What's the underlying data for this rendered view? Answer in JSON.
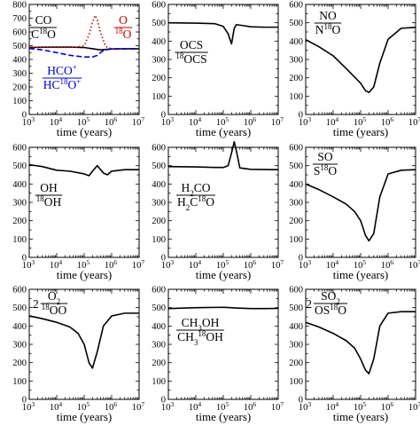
{
  "figure": {
    "xlabel": "time (years)",
    "x_tick_labels": [
      "10",
      "10",
      "10",
      "10",
      "10"
    ],
    "x_tick_exponents": [
      "3",
      "4",
      "5",
      "6",
      "7"
    ],
    "x_tick_values": [
      3,
      4,
      5,
      6,
      7
    ]
  },
  "chart_data": [
    {
      "type": "line",
      "xscale": "log",
      "xlabel": "time (years)",
      "ylabel": "",
      "xlim": [
        1000,
        10000000
      ],
      "ylim": [
        0,
        800
      ],
      "yticks": [
        0,
        100,
        200,
        300,
        400,
        500,
        600,
        700,
        800
      ],
      "series": [
        {
          "name": "CO / C18O",
          "color": "#000000",
          "style": "solid",
          "x": [
            1000,
            3000,
            10000,
            30000,
            100000,
            200000,
            400000,
            1000000,
            3000000,
            10000000
          ],
          "y": [
            487,
            489,
            490,
            490,
            487,
            478,
            470,
            476,
            478,
            478
          ]
        },
        {
          "name": "O / 18O",
          "color": "#cc0000",
          "style": "dotted",
          "x": [
            1000,
            10000,
            50000,
            100000,
            150000,
            200000,
            250000,
            300000,
            400000,
            600000,
            1000000,
            10000000
          ],
          "y": [
            488,
            488,
            489,
            500,
            580,
            670,
            720,
            690,
            590,
            495,
            476,
            478
          ]
        },
        {
          "name": "HCO+ / HC18O+",
          "color": "#0000cc",
          "style": "dashed",
          "x": [
            1000,
            3000,
            10000,
            30000,
            100000,
            200000,
            300000,
            500000,
            1000000,
            3000000,
            10000000
          ],
          "y": [
            480,
            470,
            450,
            430,
            418,
            418,
            430,
            465,
            478,
            478,
            478
          ]
        }
      ]
    },
    {
      "type": "line",
      "xscale": "log",
      "xlabel": "time (years)",
      "ylabel": "",
      "xlim": [
        1000,
        10000000
      ],
      "ylim": [
        0,
        600
      ],
      "yticks": [
        0,
        100,
        200,
        300,
        400,
        500,
        600
      ],
      "series": [
        {
          "name": "OCS / 18OCS",
          "color": "#000000",
          "style": "solid",
          "x": [
            1000,
            10000,
            50000,
            100000,
            150000,
            200000,
            250000,
            300000,
            500000,
            1000000,
            3000000,
            10000000
          ],
          "y": [
            500,
            498,
            495,
            480,
            440,
            385,
            470,
            490,
            485,
            478,
            476,
            476
          ]
        }
      ]
    },
    {
      "type": "line",
      "xscale": "log",
      "xlabel": "time (years)",
      "ylabel": "",
      "xlim": [
        1000,
        10000000
      ],
      "ylim": [
        0,
        600
      ],
      "yticks": [
        0,
        100,
        200,
        300,
        400,
        500,
        600
      ],
      "series": [
        {
          "name": "NO / N18O",
          "color": "#000000",
          "style": "solid",
          "x": [
            1000,
            3000,
            10000,
            30000,
            100000,
            150000,
            200000,
            300000,
            500000,
            1000000,
            3000000,
            10000000
          ],
          "y": [
            408,
            370,
            320,
            250,
            170,
            130,
            120,
            150,
            280,
            410,
            470,
            475
          ]
        }
      ]
    },
    {
      "type": "line",
      "xscale": "log",
      "xlabel": "time (years)",
      "ylabel": "",
      "xlim": [
        1000,
        10000000
      ],
      "ylim": [
        0,
        600
      ],
      "yticks": [
        0,
        100,
        200,
        300,
        400,
        500,
        600
      ],
      "series": [
        {
          "name": "OH / 18OH",
          "color": "#000000",
          "style": "solid",
          "x": [
            1000,
            3000,
            10000,
            30000,
            100000,
            150000,
            200000,
            300000,
            500000,
            700000,
            1000000,
            3000000,
            10000000
          ],
          "y": [
            505,
            495,
            475,
            470,
            455,
            445,
            470,
            500,
            460,
            450,
            470,
            478,
            478
          ]
        }
      ]
    },
    {
      "type": "line",
      "xscale": "log",
      "xlabel": "time (years)",
      "ylabel": "",
      "xlim": [
        1000,
        10000000
      ],
      "ylim": [
        0,
        600
      ],
      "yticks": [
        0,
        100,
        200,
        300,
        400,
        500,
        600
      ],
      "series": [
        {
          "name": "H2CO / H2C18O",
          "color": "#000000",
          "style": "solid",
          "x": [
            1000,
            10000,
            50000,
            100000,
            150000,
            200000,
            250000,
            300000,
            400000,
            1000000,
            10000000
          ],
          "y": [
            495,
            493,
            490,
            490,
            500,
            570,
            630,
            580,
            488,
            480,
            478
          ]
        }
      ]
    },
    {
      "type": "line",
      "xscale": "log",
      "xlabel": "time (years)",
      "ylabel": "",
      "xlim": [
        1000,
        10000000
      ],
      "ylim": [
        0,
        600
      ],
      "yticks": [
        0,
        100,
        200,
        300,
        400,
        500,
        600
      ],
      "series": [
        {
          "name": "SO / S18O",
          "color": "#000000",
          "style": "solid",
          "x": [
            1000,
            3000,
            10000,
            30000,
            60000,
            100000,
            150000,
            200000,
            300000,
            500000,
            1000000,
            3000000,
            10000000
          ],
          "y": [
            400,
            370,
            330,
            290,
            250,
            200,
            120,
            90,
            130,
            330,
            455,
            475,
            478
          ]
        }
      ]
    },
    {
      "type": "line",
      "xscale": "log",
      "xlabel": "time (years)",
      "ylabel": "",
      "xlim": [
        1000,
        10000000
      ],
      "ylim": [
        0,
        600
      ],
      "yticks": [
        0,
        100,
        200,
        300,
        400,
        500,
        600
      ],
      "series": [
        {
          "name": "2 O2 / 18OO",
          "color": "#000000",
          "style": "solid",
          "x": [
            1000,
            3000,
            10000,
            30000,
            60000,
            100000,
            150000,
            200000,
            300000,
            500000,
            1000000,
            3000000,
            10000000
          ],
          "y": [
            455,
            440,
            420,
            395,
            360,
            300,
            200,
            170,
            260,
            400,
            455,
            470,
            470
          ]
        }
      ]
    },
    {
      "type": "line",
      "xscale": "log",
      "xlabel": "time (years)",
      "ylabel": "",
      "xlim": [
        1000,
        10000000
      ],
      "ylim": [
        0,
        600
      ],
      "yticks": [
        0,
        100,
        200,
        300,
        400,
        500,
        600
      ],
      "series": [
        {
          "name": "CH3OH / CH318OH",
          "color": "#000000",
          "style": "solid",
          "x": [
            1000,
            10000,
            100000,
            300000,
            1000000,
            3000000,
            10000000
          ],
          "y": [
            495,
            500,
            502,
            498,
            495,
            495,
            496
          ]
        }
      ]
    },
    {
      "type": "line",
      "xscale": "log",
      "xlabel": "time (years)",
      "ylabel": "",
      "xlim": [
        1000,
        10000000
      ],
      "ylim": [
        0,
        600
      ],
      "yticks": [
        0,
        100,
        200,
        300,
        400,
        500,
        600
      ],
      "series": [
        {
          "name": "2 SO2 / OS18O",
          "color": "#000000",
          "style": "solid",
          "x": [
            1000,
            3000,
            10000,
            30000,
            60000,
            100000,
            150000,
            200000,
            300000,
            500000,
            1000000,
            3000000,
            10000000
          ],
          "y": [
            420,
            395,
            360,
            320,
            280,
            220,
            160,
            140,
            220,
            400,
            470,
            478,
            478
          ]
        }
      ]
    }
  ],
  "ratio_labels": [
    [
      {
        "id": "co",
        "numerator": [
          {
            "t": "CO"
          }
        ],
        "denominator": [
          {
            "t": "C"
          },
          {
            "t": "18",
            "s": "sup"
          },
          {
            "t": "O"
          }
        ],
        "color": "#000000"
      },
      {
        "id": "o",
        "numerator": [
          {
            "t": "O"
          }
        ],
        "denominator": [
          {
            "t": "18",
            "s": "sup"
          },
          {
            "t": "O"
          }
        ],
        "color": "#cc0000"
      },
      {
        "id": "hco",
        "numerator": [
          {
            "t": "HCO"
          },
          {
            "t": "+",
            "s": "sup"
          }
        ],
        "denominator": [
          {
            "t": "HC"
          },
          {
            "t": "18",
            "s": "sup"
          },
          {
            "t": "O"
          },
          {
            "t": "+",
            "s": "sup"
          }
        ],
        "color": "#0000cc"
      }
    ],
    [
      {
        "id": "ocs",
        "numerator": [
          {
            "t": "OCS"
          }
        ],
        "denominator": [
          {
            "t": "18",
            "s": "sup"
          },
          {
            "t": "OCS"
          }
        ],
        "color": "#000000"
      }
    ],
    [
      {
        "id": "no",
        "numerator": [
          {
            "t": "NO"
          }
        ],
        "denominator": [
          {
            "t": "N"
          },
          {
            "t": "18",
            "s": "sup"
          },
          {
            "t": "O"
          }
        ],
        "color": "#000000"
      }
    ],
    [
      {
        "id": "oh",
        "numerator": [
          {
            "t": "OH"
          }
        ],
        "denominator": [
          {
            "t": "18",
            "s": "sup"
          },
          {
            "t": "OH"
          }
        ],
        "color": "#000000"
      }
    ],
    [
      {
        "id": "h2co",
        "numerator": [
          {
            "t": "H"
          },
          {
            "t": "2",
            "s": "sub"
          },
          {
            "t": "CO"
          }
        ],
        "denominator": [
          {
            "t": "H"
          },
          {
            "t": "2",
            "s": "sub"
          },
          {
            "t": "C"
          },
          {
            "t": "18",
            "s": "sup"
          },
          {
            "t": "O"
          }
        ],
        "color": "#000000"
      }
    ],
    [
      {
        "id": "so",
        "numerator": [
          {
            "t": "SO"
          }
        ],
        "denominator": [
          {
            "t": "S"
          },
          {
            "t": "18",
            "s": "sup"
          },
          {
            "t": "O"
          }
        ],
        "color": "#000000"
      }
    ],
    [
      {
        "id": "o2",
        "prefix": "2",
        "numerator": [
          {
            "t": "O"
          },
          {
            "t": "2",
            "s": "sub"
          }
        ],
        "denominator": [
          {
            "t": "18",
            "s": "sup"
          },
          {
            "t": "OO"
          }
        ],
        "color": "#000000"
      }
    ],
    [
      {
        "id": "ch3oh",
        "numerator": [
          {
            "t": "CH"
          },
          {
            "t": "3",
            "s": "sub"
          },
          {
            "t": "OH"
          }
        ],
        "denominator": [
          {
            "t": "CH"
          },
          {
            "t": "3",
            "s": "sub"
          },
          {
            "t": "18",
            "s": "sup"
          },
          {
            "t": "OH"
          }
        ],
        "color": "#000000"
      }
    ],
    [
      {
        "id": "so2",
        "prefix": "2",
        "numerator": [
          {
            "t": "SO"
          },
          {
            "t": "2",
            "s": "sub"
          }
        ],
        "denominator": [
          {
            "t": "OS"
          },
          {
            "t": "18",
            "s": "sup"
          },
          {
            "t": "O"
          }
        ],
        "color": "#000000"
      }
    ]
  ]
}
